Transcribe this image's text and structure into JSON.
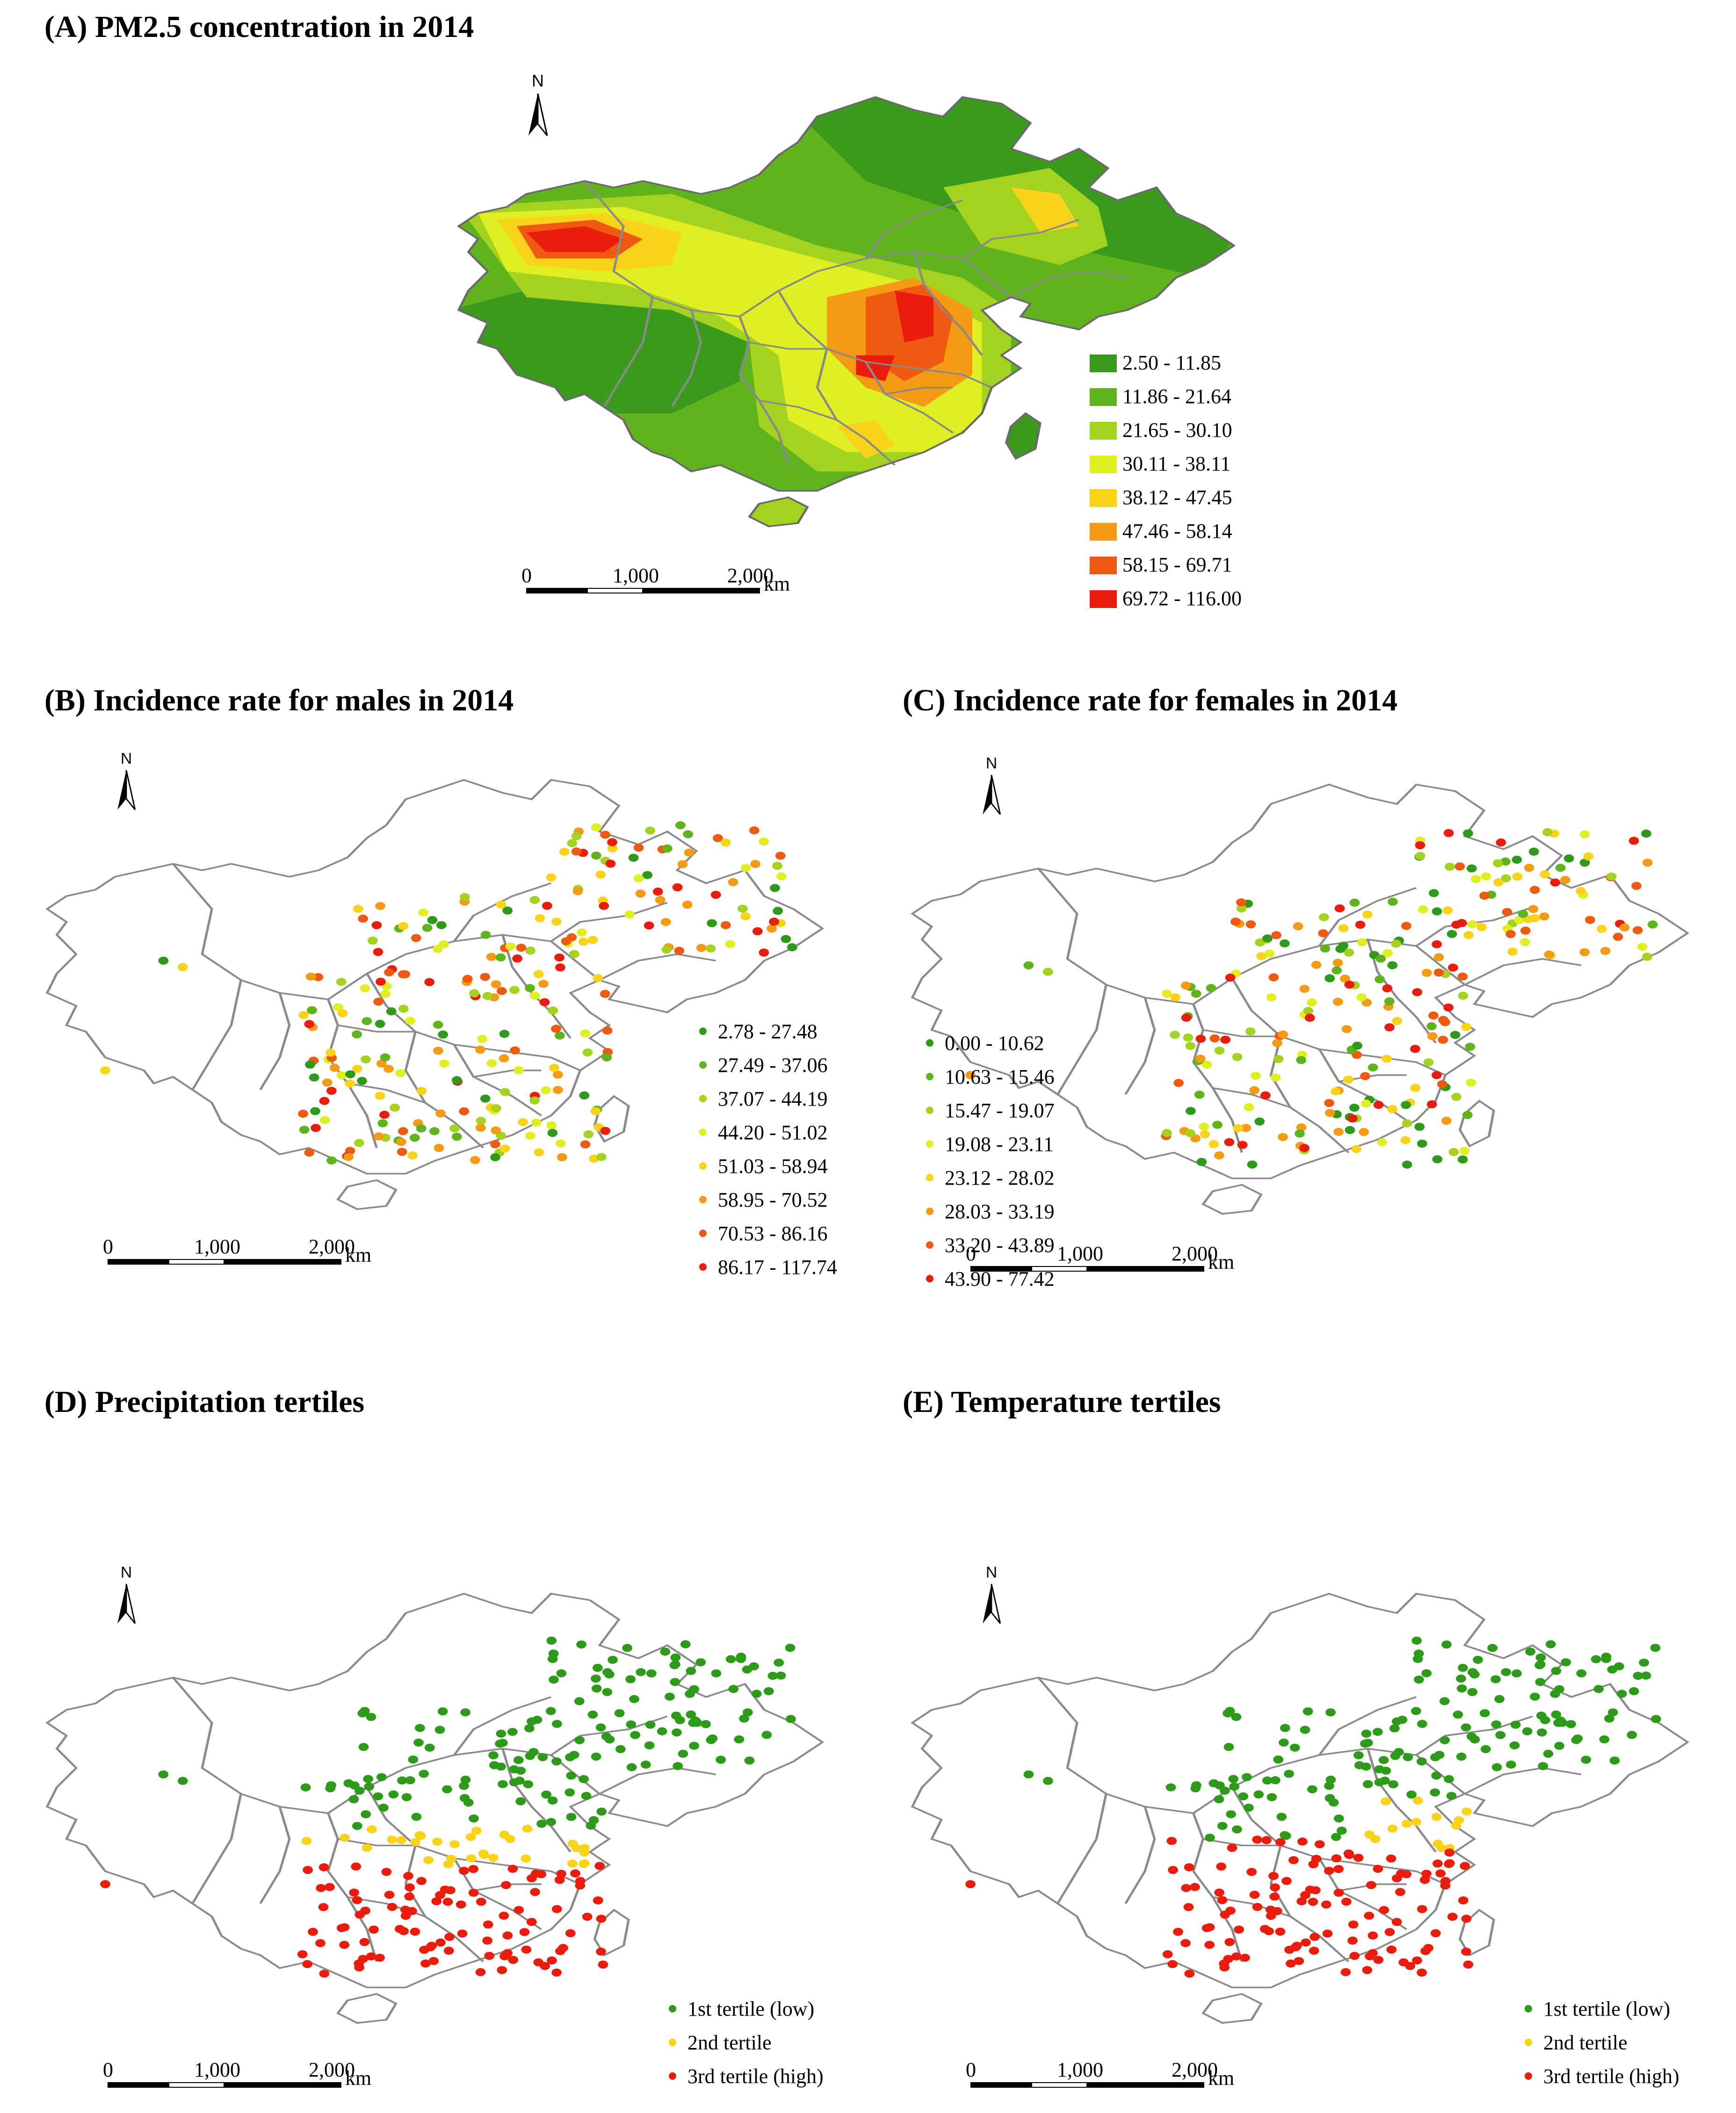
{
  "north_label": "N",
  "scale": {
    "labels": [
      "0",
      "1,000",
      "2,000"
    ],
    "unit": "km"
  },
  "panels": {
    "a": {
      "title": "(A) PM2.5 concentration in 2014",
      "legend": [
        {
          "label": "2.50 - 11.85",
          "color": "#3a9a1c"
        },
        {
          "label": "11.86 - 21.64",
          "color": "#5fb41e"
        },
        {
          "label": "21.65 - 30.10",
          "color": "#a4d220"
        },
        {
          "label": "30.11 - 38.11",
          "color": "#e0ee24"
        },
        {
          "label": "38.12 - 47.45",
          "color": "#f9d31a"
        },
        {
          "label": "47.46 - 58.14",
          "color": "#f49a14"
        },
        {
          "label": "58.15 - 69.71",
          "color": "#ef5a12"
        },
        {
          "label": "69.72 - 116.00",
          "color": "#ea1c0e"
        }
      ]
    },
    "b": {
      "title": "(B) Incidence rate for males in 2014",
      "legend": [
        {
          "label": "2.78 - 27.48",
          "color": "#2e9a1a"
        },
        {
          "label": "27.49 - 37.06",
          "color": "#5fb41e"
        },
        {
          "label": "37.07 - 44.19",
          "color": "#a4d220"
        },
        {
          "label": "44.20 - 51.02",
          "color": "#e0ee24"
        },
        {
          "label": "51.03 - 58.94",
          "color": "#f9d31a"
        },
        {
          "label": "58.95 - 70.52",
          "color": "#f49a14"
        },
        {
          "label": "70.53 - 86.16",
          "color": "#ef5a12"
        },
        {
          "label": "86.17 - 117.74",
          "color": "#ea1c0e"
        }
      ]
    },
    "c": {
      "title": "(C) Incidence rate for females in 2014",
      "legend": [
        {
          "label": "0.00 - 10.62",
          "color": "#2e9a1a"
        },
        {
          "label": "10.63 - 15.46",
          "color": "#5fb41e"
        },
        {
          "label": "15.47 - 19.07",
          "color": "#a4d220"
        },
        {
          "label": "19.08 - 23.11",
          "color": "#e0ee24"
        },
        {
          "label": "23.12 - 28.02",
          "color": "#f9d31a"
        },
        {
          "label": "28.03 - 33.19",
          "color": "#f49a14"
        },
        {
          "label": "33.20 - 43.89",
          "color": "#ef5a12"
        },
        {
          "label": "43.90 - 77.42",
          "color": "#ea1c0e"
        }
      ]
    },
    "d": {
      "title": "(D) Precipitation tertiles",
      "legend": [
        {
          "label": "1st tertile (low)",
          "color": "#2e9a1a"
        },
        {
          "label": "2nd tertile",
          "color": "#f9d31a"
        },
        {
          "label": "3rd tertile (high)",
          "color": "#ea1c0e"
        }
      ]
    },
    "e": {
      "title": "(E) Temperature tertiles",
      "legend": [
        {
          "label": "1st tertile (low)",
          "color": "#2e9a1a"
        },
        {
          "label": "2nd tertile",
          "color": "#f9d31a"
        },
        {
          "label": "3rd tertile (high)",
          "color": "#ea1c0e"
        }
      ]
    }
  }
}
